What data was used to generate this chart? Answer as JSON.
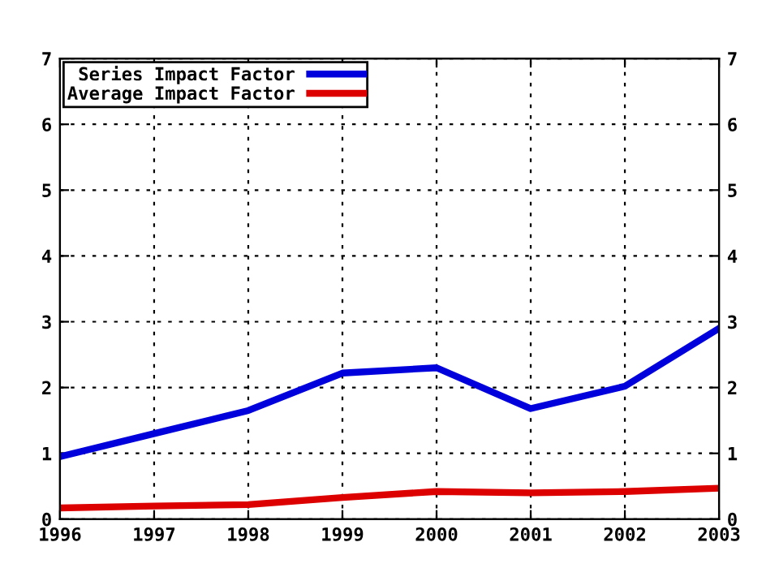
{
  "chart_data": {
    "type": "line",
    "x": [
      1996,
      1997,
      1998,
      1999,
      2000,
      2001,
      2002,
      2003
    ],
    "series": [
      {
        "name": "Series Impact Factor",
        "color": "#0000dd",
        "values": [
          0.95,
          1.3,
          1.65,
          2.22,
          2.3,
          1.68,
          2.02,
          2.9
        ]
      },
      {
        "name": "Average Impact Factor",
        "color": "#dd0000",
        "values": [
          0.17,
          0.2,
          0.22,
          0.33,
          0.42,
          0.4,
          0.42,
          0.47
        ]
      }
    ],
    "xlim": [
      1996,
      2003
    ],
    "xticks": [
      1996,
      1997,
      1998,
      1999,
      2000,
      2001,
      2002,
      2003
    ],
    "ylim": [
      0,
      7
    ],
    "yticks": [
      0,
      1,
      2,
      3,
      4,
      5,
      6,
      7
    ],
    "y2lim": [
      0,
      7
    ],
    "y2ticks": [
      0,
      1,
      2,
      3,
      4,
      5,
      6,
      7
    ],
    "grid": true,
    "legend": "top left",
    "marker": "none",
    "line_style": "solid"
  }
}
